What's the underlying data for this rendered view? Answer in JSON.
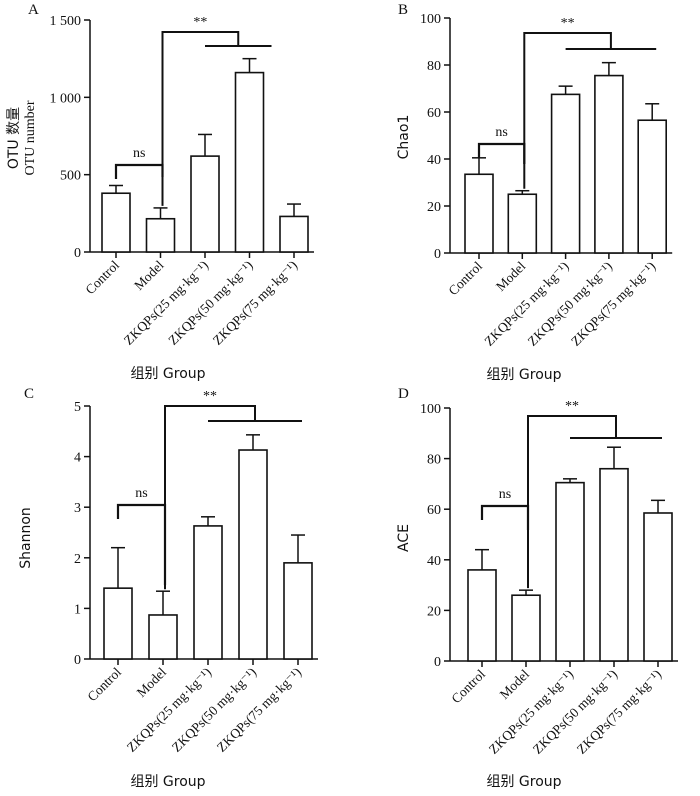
{
  "chart_data": [
    {
      "type": "bar",
      "panel_label": "A",
      "ylabel_line1": "OTU 数量",
      "ylabel_line2": "OTU number",
      "xlabel": "组别  Group",
      "categories": [
        "Control",
        "Model",
        "ZKQPs(25 mg·kg⁻¹)",
        "ZKQPs(50 mg·kg⁻¹)",
        "ZKQPs(75 mg·kg⁻¹)"
      ],
      "values": [
        380,
        215,
        620,
        1160,
        230
      ],
      "errors": [
        50,
        70,
        140,
        90,
        80
      ],
      "ylim": [
        0,
        1500
      ],
      "yticks": [
        0,
        500,
        1000,
        1500
      ],
      "ytick_labels": [
        "0",
        "500",
        "1 000",
        "1 500"
      ],
      "ns_label": "ns",
      "sig_label": "**"
    },
    {
      "type": "bar",
      "panel_label": "B",
      "ylabel_line1": "Chao1",
      "ylabel_line2": "",
      "xlabel": "组别  Group",
      "categories": [
        "Control",
        "Model",
        "ZKQPs(25 mg·kg⁻¹)",
        "ZKQPs(50 mg·kg⁻¹)",
        "ZKQPs(75 mg·kg⁻¹)"
      ],
      "values": [
        33.5,
        25,
        67.5,
        75.5,
        56.5
      ],
      "errors": [
        7,
        1.5,
        3.5,
        5.5,
        7
      ],
      "ylim": [
        0,
        100
      ],
      "yticks": [
        0,
        20,
        40,
        60,
        80,
        100
      ],
      "ytick_labels": [
        "0",
        "20",
        "40",
        "60",
        "80",
        "100"
      ],
      "ns_label": "ns",
      "sig_label": "**"
    },
    {
      "type": "bar",
      "panel_label": "C",
      "ylabel_line1": "Shannon",
      "ylabel_line2": "",
      "xlabel": "组别  Group",
      "categories": [
        "Control",
        "Model",
        "ZKQPs(25 mg·kg⁻¹)",
        "ZKQPs(50 mg·kg⁻¹)",
        "ZKQPs(75 mg·kg⁻¹)"
      ],
      "values": [
        1.4,
        0.87,
        2.63,
        4.13,
        1.9
      ],
      "errors": [
        0.8,
        0.47,
        0.18,
        0.3,
        0.55
      ],
      "ylim": [
        0,
        5
      ],
      "yticks": [
        0,
        1,
        2,
        3,
        4,
        5
      ],
      "ytick_labels": [
        "0",
        "1",
        "2",
        "3",
        "4",
        "5"
      ],
      "ns_label": "ns",
      "sig_label": "**"
    },
    {
      "type": "bar",
      "panel_label": "D",
      "ylabel_line1": "ACE",
      "ylabel_line2": "",
      "xlabel": "组别  Group",
      "categories": [
        "Control",
        "Model",
        "ZKQPs(25 mg·kg⁻¹)",
        "ZKQPs(50 mg·kg⁻¹)",
        "ZKQPs(75 mg·kg⁻¹)"
      ],
      "values": [
        36,
        26,
        70.5,
        76,
        58.5
      ],
      "errors": [
        8,
        2,
        1.5,
        8.5,
        5
      ],
      "ylim": [
        0,
        100
      ],
      "yticks": [
        0,
        20,
        40,
        60,
        80,
        100
      ],
      "ytick_labels": [
        "0",
        "20",
        "40",
        "60",
        "80",
        "100"
      ],
      "ns_label": "ns",
      "sig_label": "**"
    }
  ]
}
